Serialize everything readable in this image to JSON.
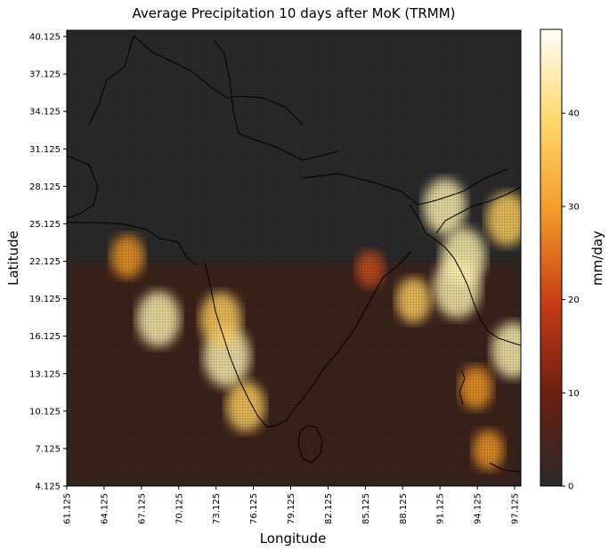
{
  "chart_data": {
    "type": "heatmap",
    "title": "Average Precipitation 10 days after MoK (TRMM)",
    "xlabel": "Longitude",
    "ylabel": "Latitude",
    "xlim": [
      61.125,
      97.625
    ],
    "ylim": [
      4.125,
      40.625
    ],
    "x_ticks": [
      "61.125",
      "64.125",
      "67.125",
      "70.125",
      "73.125",
      "76.125",
      "79.125",
      "82.125",
      "85.125",
      "88.125",
      "91.125",
      "94.125",
      "97.125"
    ],
    "y_ticks": [
      "4.125",
      "7.125",
      "10.125",
      "13.125",
      "16.125",
      "19.125",
      "22.125",
      "25.125",
      "28.125",
      "31.125",
      "34.125",
      "37.125",
      "40.125"
    ],
    "colorbar": {
      "label": "mm/day",
      "range": [
        0,
        49
      ],
      "ticks": [
        "0",
        "10",
        "20",
        "30",
        "40"
      ],
      "colormap": "afmhot"
    },
    "hotspots": [
      {
        "lon": 74.0,
        "lat": 14.5,
        "value": 45
      },
      {
        "lon": 73.5,
        "lat": 17.5,
        "value": 38
      },
      {
        "lon": 75.5,
        "lat": 10.5,
        "value": 35
      },
      {
        "lon": 68.5,
        "lat": 17.5,
        "value": 40
      },
      {
        "lon": 66.0,
        "lat": 22.5,
        "value": 28
      },
      {
        "lon": 92.5,
        "lat": 20.0,
        "value": 45
      },
      {
        "lon": 93.0,
        "lat": 22.5,
        "value": 42
      },
      {
        "lon": 97.0,
        "lat": 15.0,
        "value": 40
      },
      {
        "lon": 96.5,
        "lat": 25.5,
        "value": 38
      },
      {
        "lon": 89.0,
        "lat": 19.0,
        "value": 30
      },
      {
        "lon": 94.0,
        "lat": 12.0,
        "value": 28
      },
      {
        "lon": 91.5,
        "lat": 26.5,
        "value": 40
      },
      {
        "lon": 85.5,
        "lat": 21.5,
        "value": 22
      },
      {
        "lon": 95.0,
        "lat": 7.0,
        "value": 25
      }
    ],
    "colors": {
      "background": "#ffffff",
      "dark": "#2a2a2a",
      "coastline": "#000000"
    }
  }
}
